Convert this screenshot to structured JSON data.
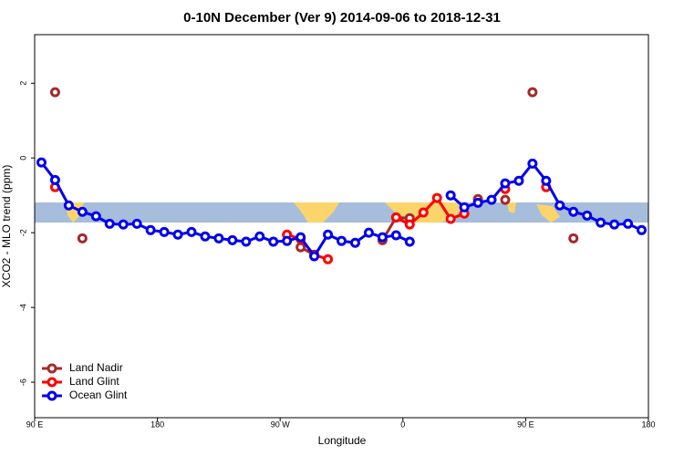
{
  "chart_data": {
    "type": "line",
    "title": "0-10N December (Ver 9)   2014-09-06 to 2018-12-31",
    "xlabel": "Longitude",
    "ylabel": "XCO2 - MLO trend (ppm)",
    "x": [
      95,
      105,
      115,
      125,
      135,
      145,
      155,
      165,
      175,
      185,
      195,
      205,
      215,
      225,
      235,
      245,
      255,
      265,
      275,
      285,
      295,
      305,
      315,
      325,
      335,
      345,
      355,
      365,
      375,
      385,
      395,
      405,
      415,
      425,
      435,
      445,
      455,
      465,
      475,
      485,
      495,
      505,
      515,
      525,
      535
    ],
    "xlim": [
      90,
      540
    ],
    "xticks": [
      {
        "value": 90,
        "label": "90 E"
      },
      {
        "value": 180,
        "label": "180"
      },
      {
        "value": 270,
        "label": "90 W"
      },
      {
        "value": 360,
        "label": "0"
      },
      {
        "value": 450,
        "label": "90 E"
      },
      {
        "value": 540,
        "label": "180"
      }
    ],
    "ylim": [
      -6.95,
      3.3
    ],
    "yticks": [
      -6,
      -4,
      -2,
      0,
      2
    ],
    "legend": "bottom-left",
    "series": [
      {
        "name": "Land Nadir",
        "color": "#a52a2a",
        "values": [
          null,
          1.76,
          null,
          -2.15,
          null,
          null,
          null,
          null,
          null,
          null,
          null,
          null,
          null,
          null,
          null,
          null,
          null,
          null,
          null,
          -2.39,
          -2.59,
          null,
          null,
          null,
          null,
          -2.2,
          -1.59,
          -1.61,
          null,
          null,
          null,
          null,
          -1.1,
          null,
          -1.12,
          null,
          1.76,
          null,
          null,
          -2.15,
          null,
          null,
          null,
          null,
          null
        ]
      },
      {
        "name": "Land Glint",
        "color": "#ff0000",
        "values": [
          null,
          -0.78,
          null,
          null,
          null,
          null,
          null,
          null,
          null,
          null,
          null,
          null,
          null,
          null,
          null,
          null,
          null,
          null,
          -2.05,
          -2.17,
          -2.59,
          -2.71,
          null,
          null,
          null,
          null,
          -1.59,
          -1.78,
          -1.46,
          -1.07,
          -1.63,
          -1.49,
          null,
          null,
          -0.83,
          null,
          null,
          -0.78,
          null,
          null,
          null,
          null,
          null,
          null,
          null
        ]
      },
      {
        "name": "Ocean Glint",
        "color": "#0000ee",
        "values": [
          -0.12,
          -0.59,
          -1.27,
          -1.44,
          -1.56,
          -1.76,
          -1.78,
          -1.76,
          -1.93,
          -1.98,
          -2.05,
          -1.98,
          -2.1,
          -2.15,
          -2.2,
          -2.24,
          -2.1,
          -2.24,
          -2.22,
          -2.12,
          -2.63,
          -2.05,
          -2.22,
          -2.27,
          -2.0,
          -2.12,
          -2.07,
          -2.24,
          null,
          null,
          -1.0,
          -1.32,
          -1.2,
          -1.12,
          -0.68,
          -0.61,
          -0.15,
          -0.61,
          -1.27,
          -1.44,
          -1.54,
          -1.73,
          -1.78,
          -1.76,
          -1.93
        ]
      }
    ]
  }
}
